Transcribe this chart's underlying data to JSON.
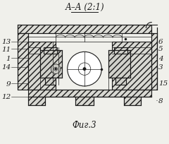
{
  "title": "А–А (2:1)",
  "caption": "Фиг.3",
  "bg_color": "#f0f0eb",
  "line_color": "#1a1a1a",
  "label_color": "#1a1a1a",
  "labels_left": [
    [
      "13",
      12,
      148
    ],
    [
      "11",
      12,
      137
    ],
    [
      "1",
      12,
      124
    ],
    [
      "14",
      12,
      111
    ],
    [
      "9",
      12,
      87
    ],
    [
      "12",
      12,
      68
    ]
  ],
  "labels_right": [
    [
      "6",
      228,
      148
    ],
    [
      "5",
      228,
      138
    ],
    [
      "4",
      228,
      124
    ],
    [
      "3",
      228,
      111
    ],
    [
      "15",
      228,
      88
    ],
    [
      "8",
      228,
      62
    ]
  ]
}
